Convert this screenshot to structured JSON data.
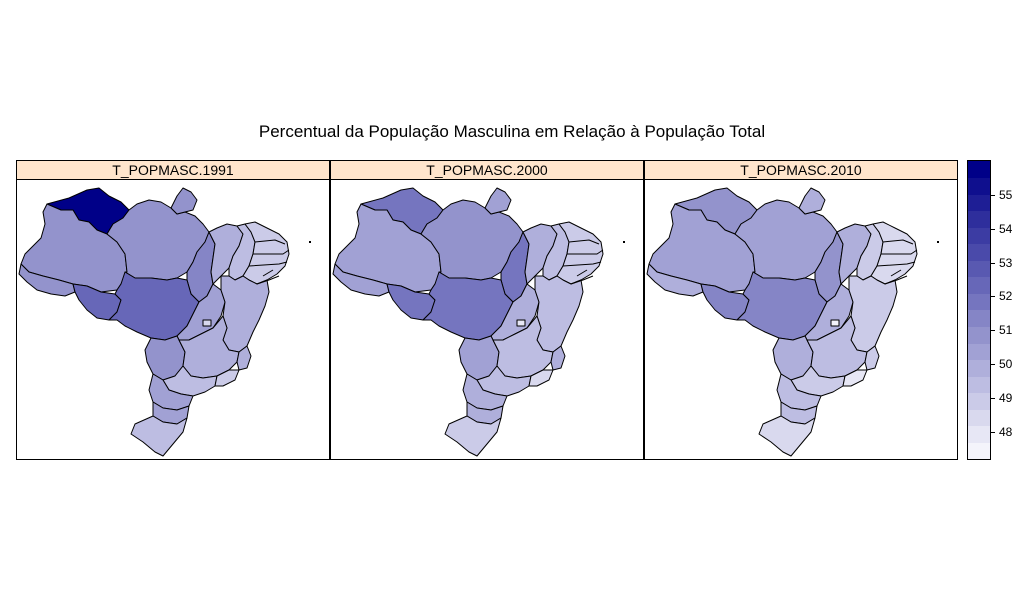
{
  "title": "Percentual da População Masculina em Relação à População Total",
  "panels": [
    {
      "label": "T_POPMASC.1991",
      "values": {
        "RR": 55.6,
        "AM": 51.0,
        "AC": 50.9,
        "RO": 52.2,
        "PA": 51.0,
        "AP": 50.8,
        "TO": 51.5,
        "MA": 50.0,
        "PI": 49.5,
        "NE": 49.0,
        "MT": 52.4,
        "GO": 50.6,
        "BA": 49.7,
        "MS": 51.0,
        "MG": 49.9,
        "ES": 50.0,
        "RJ": 48.9,
        "SP": 49.6,
        "PR": 50.4,
        "SC": 50.3,
        "RS": 49.5,
        "DF": 48.5
      }
    },
    {
      "label": "T_POPMASC.2000",
      "values": {
        "RR": 51.9,
        "AM": 50.5,
        "AC": 50.4,
        "RO": 51.6,
        "PA": 50.8,
        "AP": 50.2,
        "TO": 51.9,
        "MA": 50.0,
        "PI": 49.3,
        "NE": 48.8,
        "MT": 51.8,
        "GO": 50.1,
        "BA": 49.5,
        "MS": 50.5,
        "MG": 49.6,
        "ES": 49.7,
        "RJ": 48.4,
        "SP": 49.3,
        "PR": 49.8,
        "SC": 50.0,
        "RS": 49.0,
        "DF": 48.0
      }
    },
    {
      "label": "T_POPMASC.2010",
      "values": {
        "RR": 50.8,
        "AM": 50.4,
        "AC": 50.1,
        "RO": 51.2,
        "PA": 50.5,
        "AP": 50.0,
        "TO": 50.9,
        "MA": 49.8,
        "PI": 49.0,
        "NE": 48.6,
        "MT": 51.3,
        "GO": 49.7,
        "BA": 49.0,
        "MS": 49.9,
        "MG": 49.3,
        "ES": 49.1,
        "RJ": 48.0,
        "SP": 49.0,
        "PR": 49.2,
        "SC": 49.6,
        "RS": 48.5,
        "DF": 47.6
      }
    }
  ],
  "legend": {
    "min": 47.2,
    "max": 56,
    "ticks": [
      "48",
      "49",
      "50",
      "51",
      "52",
      "53",
      "54",
      "55"
    ],
    "colors": [
      "#f4f4fb",
      "#e7e7f5",
      "#d9d9ee",
      "#cbcbe8",
      "#bdbde2",
      "#afafdb",
      "#a1a1d4",
      "#9393cc",
      "#8585c6",
      "#7575bf",
      "#6767b8",
      "#5959b1",
      "#4a4aaa",
      "#3c3ca3",
      "#2e2e9c",
      "#1e1e95",
      "#0f0f8e",
      "#000088"
    ]
  }
}
